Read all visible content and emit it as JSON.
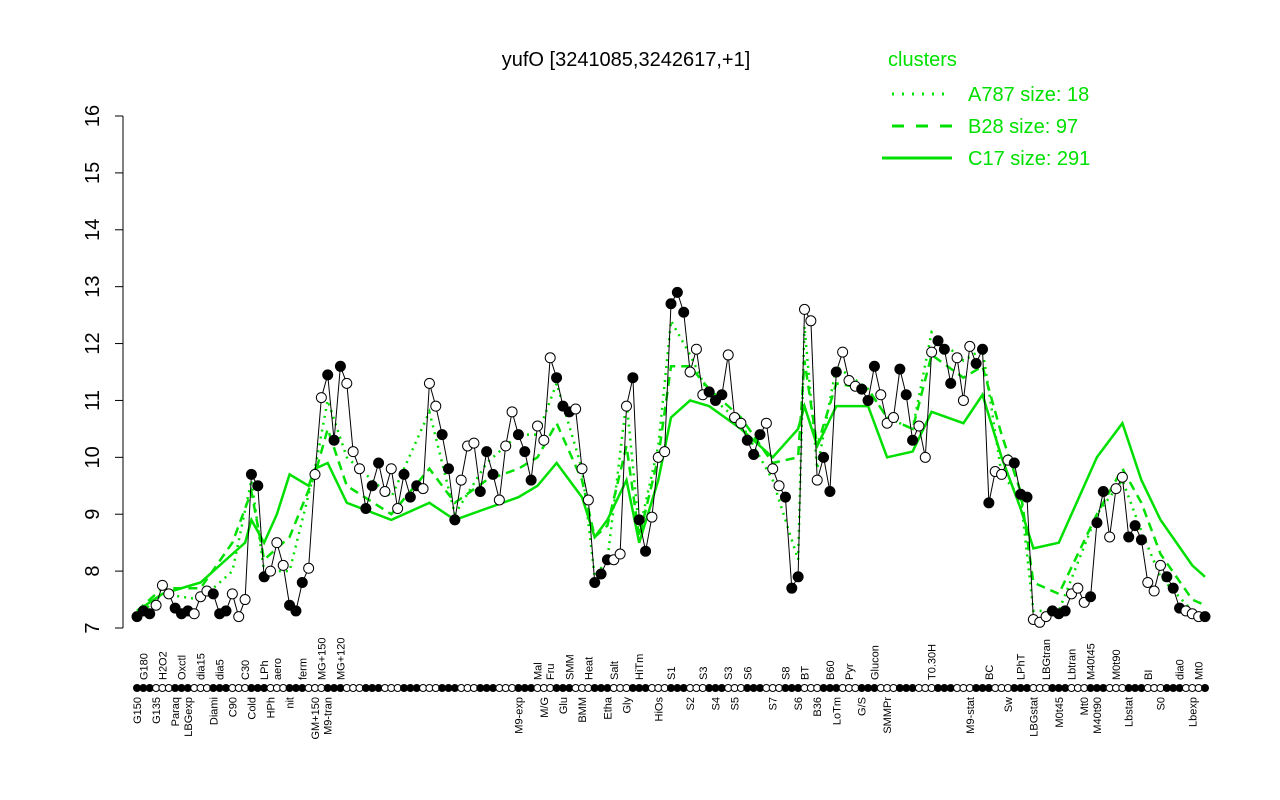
{
  "chart_data": {
    "type": "line",
    "title": "yufO [3241085,3242617,+1]",
    "ylim": [
      7,
      16
    ],
    "yticks": [
      7,
      8,
      9,
      10,
      11,
      12,
      13,
      14,
      15,
      16
    ],
    "grid": false,
    "legend": {
      "title": "clusters",
      "placement": "top-right",
      "entries": [
        "A787 size: 18",
        "B28 size: 97",
        "C17 size: 291"
      ]
    },
    "colors": {
      "points_line": "#000000",
      "clusters": "#00e000"
    },
    "points": [
      [
        "G150",
        7.2
      ],
      [
        "G180",
        7.3
      ],
      [
        "",
        7.25
      ],
      [
        "G135",
        7.4
      ],
      [
        "H2O2",
        7.75
      ],
      [
        "",
        7.6
      ],
      [
        "Paraq",
        7.35
      ],
      [
        "Oxctl",
        7.25
      ],
      [
        "LBGexp",
        7.3
      ],
      [
        "",
        7.25
      ],
      [
        "dia15",
        7.55
      ],
      [
        "",
        7.65
      ],
      [
        "Diami",
        7.6
      ],
      [
        "dia5",
        7.25
      ],
      [
        "",
        7.3
      ],
      [
        "C90",
        7.6
      ],
      [
        "",
        7.2
      ],
      [
        "C30",
        7.5
      ],
      [
        "Cold",
        9.7
      ],
      [
        "",
        9.5
      ],
      [
        "LPh",
        7.9
      ],
      [
        "HPh",
        8.0
      ],
      [
        "aero",
        8.5
      ],
      [
        "",
        8.1
      ],
      [
        "nit",
        7.4
      ],
      [
        "",
        7.3
      ],
      [
        "ferm",
        7.8
      ],
      [
        "",
        8.05
      ],
      [
        "GM+150",
        9.7
      ],
      [
        "MG+150",
        11.05
      ],
      [
        "M9-tran",
        11.45
      ],
      [
        "",
        10.3
      ],
      [
        "MG+120",
        11.6
      ],
      [
        "",
        11.3
      ],
      [
        "",
        10.1
      ],
      [
        "",
        9.8
      ],
      [
        "",
        9.1
      ],
      [
        "",
        9.5
      ],
      [
        "",
        9.9
      ],
      [
        "",
        9.4
      ],
      [
        "",
        9.8
      ],
      [
        "",
        9.1
      ],
      [
        "",
        9.7
      ],
      [
        "",
        9.3
      ],
      [
        "",
        9.5
      ],
      [
        "",
        9.45
      ],
      [
        "",
        11.3
      ],
      [
        "",
        10.9
      ],
      [
        "",
        10.4
      ],
      [
        "",
        9.8
      ],
      [
        "",
        8.9
      ],
      [
        "",
        9.6
      ],
      [
        "",
        10.2
      ],
      [
        "",
        10.25
      ],
      [
        "",
        9.4
      ],
      [
        "",
        10.1
      ],
      [
        "",
        9.7
      ],
      [
        "",
        9.25
      ],
      [
        "",
        10.2
      ],
      [
        "",
        10.8
      ],
      [
        "M9-exp",
        10.4
      ],
      [
        "",
        10.1
      ],
      [
        "",
        9.6
      ],
      [
        "Mal",
        10.55
      ],
      [
        "M/G",
        10.3
      ],
      [
        "Fru",
        11.75
      ],
      [
        "",
        11.4
      ],
      [
        "Glu",
        10.9
      ],
      [
        "SMM",
        10.8
      ],
      [
        "",
        10.85
      ],
      [
        "BMM",
        9.8
      ],
      [
        "Heat",
        9.25
      ],
      [
        "",
        7.8
      ],
      [
        "",
        7.95
      ],
      [
        "Etha",
        8.2
      ],
      [
        "Salt",
        8.2
      ],
      [
        "",
        8.3
      ],
      [
        "Gly",
        10.9
      ],
      [
        "",
        11.4
      ],
      [
        "HiTm",
        8.9
      ],
      [
        "",
        8.35
      ],
      [
        "",
        8.95
      ],
      [
        "HiOs",
        10.0
      ],
      [
        "",
        10.1
      ],
      [
        "S1",
        12.7
      ],
      [
        "",
        12.9
      ],
      [
        "",
        12.55
      ],
      [
        "S2",
        11.5
      ],
      [
        "",
        11.9
      ],
      [
        "S3",
        11.1
      ],
      [
        "",
        11.15
      ],
      [
        "S4",
        11.0
      ],
      [
        "",
        11.1
      ],
      [
        "S3",
        11.8
      ],
      [
        "S5",
        10.7
      ],
      [
        "",
        10.6
      ],
      [
        "S6",
        10.3
      ],
      [
        "",
        10.05
      ],
      [
        "",
        10.4
      ],
      [
        "",
        10.6
      ],
      [
        "S7",
        9.8
      ],
      [
        "",
        9.5
      ],
      [
        "S8",
        9.3
      ],
      [
        "",
        7.7
      ],
      [
        "S6",
        7.9
      ],
      [
        "BT",
        12.6
      ],
      [
        "",
        12.4
      ],
      [
        "B36",
        9.6
      ],
      [
        "",
        10.0
      ],
      [
        "B60",
        9.4
      ],
      [
        "LoTm",
        11.5
      ],
      [
        "",
        11.85
      ],
      [
        "Pyr",
        11.35
      ],
      [
        "",
        11.25
      ],
      [
        "G/S",
        11.2
      ],
      [
        "",
        11.0
      ],
      [
        "Glucon",
        11.6
      ],
      [
        "",
        11.1
      ],
      [
        "SMMPr",
        10.6
      ],
      [
        "",
        10.7
      ],
      [
        "",
        11.55
      ],
      [
        "",
        11.1
      ],
      [
        "",
        10.3
      ],
      [
        "",
        10.55
      ],
      [
        "",
        10.0
      ],
      [
        "T0.30H",
        11.85
      ],
      [
        "",
        12.05
      ],
      [
        "",
        11.9
      ],
      [
        "",
        11.3
      ],
      [
        "",
        11.75
      ],
      [
        "",
        11.0
      ],
      [
        "M9-stat",
        11.95
      ],
      [
        "",
        11.65
      ],
      [
        "",
        11.9
      ],
      [
        "BC",
        9.2
      ],
      [
        "",
        9.75
      ],
      [
        "",
        9.7
      ],
      [
        "Sw",
        9.95
      ],
      [
        "",
        9.9
      ],
      [
        "LPhT",
        9.35
      ],
      [
        "",
        9.3
      ],
      [
        "LBGstat",
        7.15
      ],
      [
        "",
        7.1
      ],
      [
        "LBGtran",
        7.2
      ],
      [
        "",
        7.3
      ],
      [
        "M0t45",
        7.25
      ],
      [
        "",
        7.3
      ],
      [
        "Lbtran",
        7.6
      ],
      [
        "",
        7.7
      ],
      [
        "Mt0",
        7.45
      ],
      [
        "M40t45",
        7.55
      ],
      [
        "M40t90",
        8.85
      ],
      [
        "",
        9.4
      ],
      [
        "",
        8.6
      ],
      [
        "M0t90",
        9.45
      ],
      [
        "",
        9.65
      ],
      [
        "Lbstat",
        8.6
      ],
      [
        "",
        8.8
      ],
      [
        "",
        8.55
      ],
      [
        "BI",
        7.8
      ],
      [
        "",
        7.65
      ],
      [
        "S0",
        8.1
      ],
      [
        "",
        7.9
      ],
      [
        "",
        7.7
      ],
      [
        "dia0",
        7.35
      ],
      [
        "",
        7.3
      ],
      [
        "Lbexp",
        7.25
      ],
      [
        "Mt0",
        7.2
      ],
      [
        "",
        7.2
      ]
    ],
    "series": [
      {
        "name": "C17 size: 291",
        "style": "solid",
        "knots": [
          [
            0,
            7.3
          ],
          [
            4,
            7.6
          ],
          [
            10,
            7.8
          ],
          [
            15,
            8.3
          ],
          [
            17,
            8.5
          ],
          [
            18,
            8.9
          ],
          [
            20,
            8.5
          ],
          [
            22,
            9.0
          ],
          [
            24,
            9.7
          ],
          [
            27,
            9.5
          ],
          [
            28,
            9.8
          ],
          [
            30,
            9.9
          ],
          [
            33,
            9.2
          ],
          [
            40,
            8.9
          ],
          [
            46,
            9.2
          ],
          [
            50,
            8.9
          ],
          [
            55,
            9.1
          ],
          [
            60,
            9.3
          ],
          [
            63,
            9.5
          ],
          [
            66,
            9.9
          ],
          [
            70,
            9.3
          ],
          [
            72,
            8.6
          ],
          [
            74,
            8.9
          ],
          [
            77,
            9.6
          ],
          [
            79,
            8.5
          ],
          [
            82,
            9.6
          ],
          [
            84,
            10.7
          ],
          [
            87,
            11.0
          ],
          [
            90,
            10.9
          ],
          [
            95,
            10.5
          ],
          [
            100,
            10.0
          ],
          [
            104,
            10.5
          ],
          [
            105,
            10.9
          ],
          [
            107,
            10.2
          ],
          [
            110,
            10.9
          ],
          [
            115,
            10.9
          ],
          [
            118,
            10.0
          ],
          [
            122,
            10.1
          ],
          [
            125,
            10.8
          ],
          [
            130,
            10.6
          ],
          [
            133,
            11.1
          ],
          [
            136,
            10.0
          ],
          [
            139,
            9.1
          ],
          [
            141,
            8.4
          ],
          [
            145,
            8.5
          ],
          [
            151,
            10.0
          ],
          [
            155,
            10.6
          ],
          [
            158,
            9.6
          ],
          [
            161,
            8.9
          ],
          [
            166,
            8.1
          ],
          [
            168,
            7.9
          ]
        ]
      },
      {
        "name": "B28 size: 97",
        "style": "dashed",
        "knots": [
          [
            0,
            7.3
          ],
          [
            4,
            7.7
          ],
          [
            10,
            7.7
          ],
          [
            15,
            8.5
          ],
          [
            18,
            9.4
          ],
          [
            20,
            8.2
          ],
          [
            24,
            8.6
          ],
          [
            28,
            9.7
          ],
          [
            30,
            10.5
          ],
          [
            33,
            9.5
          ],
          [
            40,
            9.0
          ],
          [
            46,
            9.8
          ],
          [
            50,
            9.2
          ],
          [
            55,
            9.6
          ],
          [
            60,
            9.8
          ],
          [
            63,
            10.0
          ],
          [
            66,
            10.6
          ],
          [
            70,
            9.6
          ],
          [
            72,
            8.6
          ],
          [
            74,
            8.8
          ],
          [
            77,
            10.2
          ],
          [
            79,
            8.6
          ],
          [
            82,
            10.0
          ],
          [
            84,
            11.6
          ],
          [
            87,
            11.6
          ],
          [
            90,
            11.2
          ],
          [
            95,
            10.7
          ],
          [
            100,
            9.9
          ],
          [
            104,
            10.0
          ],
          [
            105,
            11.7
          ],
          [
            107,
            10.2
          ],
          [
            110,
            11.3
          ],
          [
            115,
            11.2
          ],
          [
            118,
            10.7
          ],
          [
            122,
            10.5
          ],
          [
            125,
            11.8
          ],
          [
            130,
            11.4
          ],
          [
            133,
            11.6
          ],
          [
            136,
            10.4
          ],
          [
            139,
            9.4
          ],
          [
            141,
            7.8
          ],
          [
            145,
            7.6
          ],
          [
            151,
            9.0
          ],
          [
            155,
            9.8
          ],
          [
            158,
            9.2
          ],
          [
            161,
            8.3
          ],
          [
            166,
            7.5
          ],
          [
            168,
            7.4
          ]
        ]
      },
      {
        "name": "A787 size: 18",
        "style": "dotted",
        "knots": [
          [
            0,
            7.2
          ],
          [
            4,
            7.6
          ],
          [
            10,
            7.5
          ],
          [
            15,
            8.0
          ],
          [
            18,
            9.6
          ],
          [
            20,
            8.0
          ],
          [
            24,
            8.0
          ],
          [
            28,
            9.8
          ],
          [
            30,
            11.0
          ],
          [
            33,
            10.0
          ],
          [
            40,
            9.3
          ],
          [
            46,
            10.8
          ],
          [
            50,
            9.0
          ],
          [
            55,
            9.9
          ],
          [
            60,
            10.4
          ],
          [
            63,
            10.4
          ],
          [
            66,
            11.3
          ],
          [
            70,
            9.8
          ],
          [
            72,
            7.9
          ],
          [
            74,
            8.2
          ],
          [
            77,
            11.0
          ],
          [
            79,
            8.7
          ],
          [
            82,
            10.2
          ],
          [
            84,
            12.4
          ],
          [
            87,
            11.8
          ],
          [
            90,
            11.1
          ],
          [
            95,
            10.6
          ],
          [
            100,
            9.6
          ],
          [
            104,
            8.2
          ],
          [
            105,
            12.3
          ],
          [
            107,
            9.8
          ],
          [
            110,
            11.6
          ],
          [
            115,
            11.2
          ],
          [
            118,
            10.7
          ],
          [
            122,
            10.5
          ],
          [
            125,
            12.2
          ],
          [
            130,
            11.7
          ],
          [
            133,
            11.9
          ],
          [
            136,
            9.7
          ],
          [
            139,
            9.3
          ],
          [
            141,
            7.3
          ],
          [
            145,
            7.3
          ],
          [
            151,
            9.0
          ],
          [
            155,
            9.6
          ],
          [
            158,
            8.7
          ],
          [
            161,
            7.9
          ],
          [
            166,
            7.3
          ],
          [
            168,
            7.2
          ]
        ]
      }
    ]
  }
}
